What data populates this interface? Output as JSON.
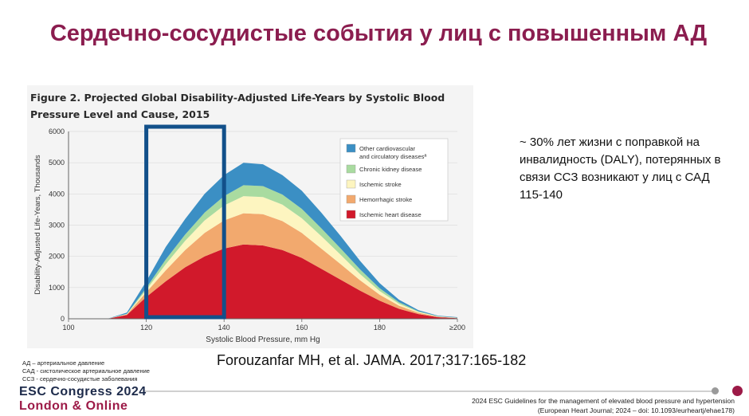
{
  "slide": {
    "title": "Сердечно-сосудистые события у лиц с повышенным АД",
    "note": "~ 30% лет жизни с поправкой на инвалидность (DALY), потерянных в связи ССЗ возникают у лиц с САД 115-140",
    "citation": "Forouzanfar MH, et al. JAMA. 2017;317:165-182",
    "abbreviations": [
      "АД – артериальное давление",
      "САД - систолическое артериальное давление",
      "ССЗ - сердечно-сосудистые заболевания"
    ],
    "footer": {
      "congress_line1": "ESC Congress 2024",
      "congress_line2": "London & Online",
      "guideline_line1": "2024 ESC Guidelines for the management of elevated blood pressure and hypertension",
      "guideline_line2": "(European Heart Journal; 2024 – doi: 10.1093/eurheartj/ehae178)"
    }
  },
  "chart_data": {
    "type": "area",
    "title": "Figure 2. Projected Global Disability-Adjusted Life-Years by Systolic Blood Pressure Level and Cause, 2015",
    "xlabel": "Systolic Blood Pressure, mm Hg",
    "ylabel": "Disability-Adjusted Life-Years, Thousands",
    "xlim": [
      100,
      200
    ],
    "ylim": [
      0,
      6000
    ],
    "x_ticks": [
      "100",
      "120",
      "140",
      "160",
      "180",
      "≥200"
    ],
    "y_ticks": [
      "0",
      "1000",
      "2000",
      "3000",
      "4000",
      "5000",
      "6000"
    ],
    "stacked": true,
    "x": [
      110,
      115,
      120,
      125,
      130,
      135,
      140,
      145,
      150,
      155,
      160,
      165,
      170,
      175,
      180,
      185,
      190,
      195,
      200
    ],
    "series": [
      {
        "name": "Ischemic heart disease",
        "color": "#d1192b",
        "values": [
          0,
          120,
          700,
          1200,
          1650,
          2000,
          2250,
          2380,
          2350,
          2200,
          1950,
          1600,
          1250,
          900,
          580,
          320,
          150,
          50,
          20
        ]
      },
      {
        "name": "Hemorrhagic stroke",
        "color": "#f2a96e",
        "values": [
          0,
          20,
          150,
          350,
          550,
          750,
          900,
          1000,
          1000,
          930,
          800,
          650,
          500,
          330,
          190,
          100,
          45,
          15,
          5
        ]
      },
      {
        "name": "Ischemic stroke",
        "color": "#fdf5c0",
        "values": [
          0,
          10,
          80,
          200,
          300,
          400,
          480,
          550,
          550,
          530,
          470,
          400,
          300,
          200,
          120,
          60,
          25,
          10,
          5
        ]
      },
      {
        "name": "Chronic kidney disease",
        "color": "#a9dba0",
        "values": [
          0,
          10,
          60,
          150,
          200,
          250,
          300,
          350,
          350,
          320,
          300,
          250,
          200,
          150,
          90,
          50,
          20,
          10,
          5
        ]
      },
      {
        "name": "Other cardiovascular and circulatory diseases",
        "color": "#3b8fc4",
        "values": [
          0,
          40,
          210,
          400,
          500,
          600,
          670,
          720,
          700,
          620,
          580,
          500,
          400,
          270,
          160,
          80,
          35,
          15,
          15
        ]
      }
    ],
    "legend": {
      "placement": "top-right",
      "other_label": [
        "Other cardiovascular",
        "and circulatory diseasesª"
      ]
    },
    "highlight": {
      "x_range": [
        120,
        140
      ],
      "color": "#12508a"
    }
  }
}
